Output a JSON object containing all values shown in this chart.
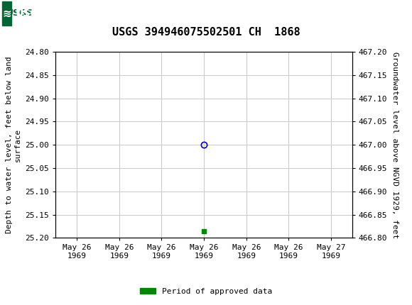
{
  "title": "USGS 394946075502501 CH  1868",
  "ylabel_left": "Depth to water level, feet below land\nsurface",
  "ylabel_right": "Groundwater level above NGVD 1929, feet",
  "header_color": "#006633",
  "background_color": "#ffffff",
  "plot_bg_color": "#ffffff",
  "grid_color": "#c8c8c8",
  "ylim_left_top": 24.8,
  "ylim_left_bottom": 25.2,
  "ylim_right_bottom": 466.8,
  "ylim_right_top": 467.2,
  "yticks_left": [
    24.8,
    24.85,
    24.9,
    24.95,
    25.0,
    25.05,
    25.1,
    25.15,
    25.2
  ],
  "yticks_right": [
    466.8,
    466.85,
    466.9,
    466.95,
    467.0,
    467.05,
    467.1,
    467.15,
    467.2
  ],
  "data_point_x": 3,
  "data_point_y_depth": 25.0,
  "data_point_color": "#0000cc",
  "data_point_marker_size": 6,
  "green_square_x": 3,
  "green_square_y_depth": 25.185,
  "green_square_color": "#008800",
  "green_square_size": 4,
  "legend_label": "Period of approved data",
  "legend_color": "#008800",
  "font_family": "DejaVu Sans Mono",
  "title_fontsize": 11,
  "tick_fontsize": 8,
  "label_fontsize": 8,
  "x_tick_positions": [
    0,
    1,
    2,
    3,
    4,
    5,
    6
  ],
  "x_tick_labels": [
    "May 26\n1969",
    "May 26\n1969",
    "May 26\n1969",
    "May 26\n1969",
    "May 26\n1969",
    "May 26\n1969",
    "May 27\n1969"
  ],
  "xlim": [
    -0.5,
    6.5
  ]
}
